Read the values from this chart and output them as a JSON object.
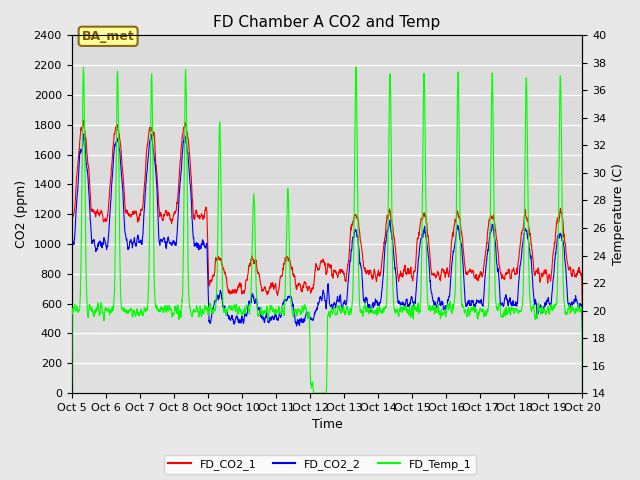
{
  "title": "FD Chamber A CO2 and Temp",
  "xlabel": "Time",
  "ylabel_left": "CO2 (ppm)",
  "ylabel_right": "Temperature (C)",
  "ylim_left": [
    0,
    2400
  ],
  "ylim_right": [
    14,
    40
  ],
  "yticks_left": [
    0,
    200,
    400,
    600,
    800,
    1000,
    1200,
    1400,
    1600,
    1800,
    2000,
    2200,
    2400
  ],
  "yticks_right": [
    14,
    16,
    18,
    20,
    22,
    24,
    26,
    28,
    30,
    32,
    34,
    36,
    38,
    40
  ],
  "xtick_labels": [
    "Oct 5",
    "Oct 6",
    "Oct 7",
    "Oct 8",
    "Oct 9",
    "Oct 10",
    "Oct 11",
    "Oct 12",
    "Oct 13",
    "Oct 14",
    "Oct 15",
    "Oct 16",
    "Oct 17",
    "Oct 18",
    "Oct 19",
    "Oct 20"
  ],
  "annotation_text": "BA_met",
  "color_co2_1": "#FF0000",
  "color_co2_2": "#0000FF",
  "color_temp": "#00FF00",
  "legend_labels": [
    "FD_CO2_1",
    "FD_CO2_2",
    "FD_Temp_1"
  ],
  "background_color": "#E8E8E8",
  "plot_bg_upper": "#DCDCDC",
  "plot_bg_lower": "#E8E8E8",
  "grid_color": "#FFFFFF",
  "title_fontsize": 11,
  "axis_fontsize": 9,
  "tick_fontsize": 8,
  "linewidth": 0.8
}
